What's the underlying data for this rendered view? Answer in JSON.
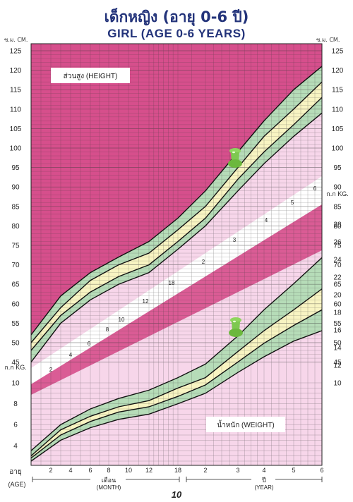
{
  "title_th": "เด็กหญิง (อายุ 0-6 ปี)",
  "title_en": "GIRL (AGE 0-6 YEARS)",
  "left_unit_top": "ซ.ม. CM.",
  "right_unit_top": "ซ.ม. CM.",
  "page_number": "10",
  "colors": {
    "dark_pink": "#d64f8c",
    "light_pink": "#f7d6ea",
    "green": "#b6dcb8",
    "yellow": "#f8f4c2",
    "grid_line": "#3a3a3a",
    "white_band": "#ffffff",
    "pin": "#7ec850"
  },
  "icons": [
    "pushpin-icon",
    "pushpin-icon"
  ],
  "chart_data": {
    "type": "line",
    "height_panel": {
      "label": "ส่วนสูง (HEIGHT)",
      "unit": "cm",
      "y_ticks": [
        125,
        120,
        115,
        110,
        105,
        100,
        95,
        90,
        85,
        80,
        75,
        70,
        65,
        60,
        55,
        50,
        45
      ],
      "curves_x_months": [
        0,
        3,
        6,
        9,
        12,
        18,
        24,
        36,
        48,
        60,
        72
      ],
      "series": [
        {
          "values": [
            45,
            55,
            61,
            65,
            68,
            74,
            80,
            89,
            96,
            103,
            109
          ]
        },
        {
          "values": [
            48,
            57,
            63,
            67,
            70,
            76,
            82,
            92,
            99,
            106,
            113
          ]
        },
        {
          "values": [
            50,
            59,
            66,
            70,
            73,
            79,
            85,
            95,
            103,
            110,
            117
          ]
        },
        {
          "values": [
            52,
            62,
            68,
            72,
            76,
            82,
            89,
            99,
            107,
            115,
            121
          ]
        }
      ]
    },
    "weight_panel": {
      "label": "น้ำหนัก (WEIGHT)",
      "unit": "kg",
      "unit_label_left": "ก.ก KG.",
      "unit_label_right": "ก.ก KG.",
      "y_ticks_left": [
        10,
        8,
        6,
        4
      ],
      "y_ticks_right": [
        28,
        26,
        24,
        22,
        20,
        18,
        16,
        14,
        12,
        10
      ],
      "curves_x_months": [
        0,
        3,
        6,
        9,
        12,
        18,
        24,
        36,
        48,
        60,
        72
      ],
      "series": [
        {
          "values": [
            2.5,
            4.5,
            5.7,
            6.5,
            7.0,
            8.0,
            9.0,
            11.0,
            12.5,
            14.0,
            15.0
          ]
        },
        {
          "values": [
            2.8,
            5.0,
            6.3,
            7.2,
            7.7,
            8.7,
            9.8,
            12.0,
            13.8,
            15.5,
            17.0
          ]
        },
        {
          "values": [
            3.0,
            5.5,
            6.8,
            7.7,
            8.3,
            9.5,
            10.5,
            13.0,
            15.0,
            17.0,
            19.0
          ]
        },
        {
          "values": [
            3.5,
            6.0,
            7.5,
            8.5,
            9.3,
            10.5,
            11.8,
            14.5,
            17.0,
            19.5,
            22.0
          ]
        }
      ]
    },
    "diagonal_band_labels": [
      "2",
      "4",
      "6",
      "8",
      "10",
      "12",
      "18",
      "2",
      "3",
      "4",
      "5",
      "6"
    ],
    "x_axis": {
      "left_label_th": "อายุ",
      "left_label_en": "(AGE)",
      "month_ticks": [
        "2",
        "4",
        "6",
        "8",
        "10",
        "12",
        "18"
      ],
      "year_ticks": [
        "2",
        "3",
        "4",
        "5",
        "6"
      ],
      "month_label_th": "เดือน",
      "month_label_en": "(MONTH)",
      "year_label_th": "ปี",
      "year_label_en": "(YEAR)"
    },
    "grid": true
  }
}
